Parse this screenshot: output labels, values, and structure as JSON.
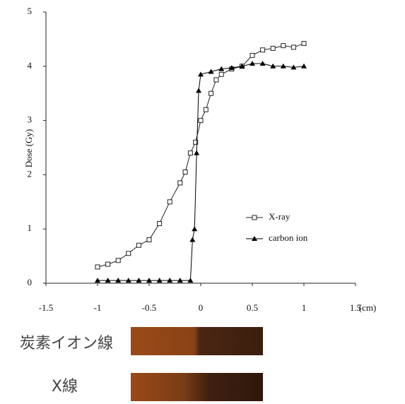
{
  "chart_data": {
    "type": "line",
    "y_label": "Dose (Gy)",
    "x_label": "(cm)",
    "xlim": [
      -1.5,
      1.5
    ],
    "xticks": [
      -1.5,
      -1,
      -0.5,
      0,
      0.5,
      1,
      1.5
    ],
    "ylim": [
      0,
      5
    ],
    "yticks": [
      0,
      1,
      2,
      3,
      4,
      5
    ],
    "series": [
      {
        "name": "X-ray",
        "color": "#222222",
        "marker": "square",
        "x": [
          -1,
          -0.9,
          -0.8,
          -0.7,
          -0.6,
          -0.5,
          -0.4,
          -0.3,
          -0.2,
          -0.15,
          -0.1,
          -0.05,
          0,
          0.05,
          0.1,
          0.15,
          0.2,
          0.3,
          0.4,
          0.5,
          0.6,
          0.7,
          0.8,
          0.9,
          1
        ],
        "values": [
          0.3,
          0.35,
          0.42,
          0.55,
          0.7,
          0.8,
          1.1,
          1.5,
          1.85,
          2.05,
          2.4,
          2.6,
          3.0,
          3.2,
          3.5,
          3.75,
          3.85,
          3.95,
          4.0,
          4.2,
          4.3,
          4.33,
          4.38,
          4.35,
          4.42
        ]
      },
      {
        "name": "carbon ion",
        "color": "#000000",
        "marker": "triangle",
        "x": [
          -1,
          -0.9,
          -0.8,
          -0.7,
          -0.6,
          -0.5,
          -0.4,
          -0.3,
          -0.2,
          -0.1,
          -0.08,
          -0.06,
          -0.04,
          -0.02,
          0,
          0.1,
          0.2,
          0.3,
          0.4,
          0.5,
          0.6,
          0.7,
          0.8,
          0.9,
          1
        ],
        "values": [
          0.05,
          0.05,
          0.05,
          0.05,
          0.05,
          0.05,
          0.05,
          0.05,
          0.05,
          0.05,
          0.8,
          1.0,
          2.4,
          3.55,
          3.85,
          3.9,
          3.95,
          3.97,
          4.0,
          4.05,
          4.05,
          4.0,
          4.0,
          3.98,
          4.0
        ]
      }
    ],
    "legend": "right"
  },
  "images": [
    {
      "label": "炭素イオン線"
    },
    {
      "label": "X線"
    }
  ]
}
